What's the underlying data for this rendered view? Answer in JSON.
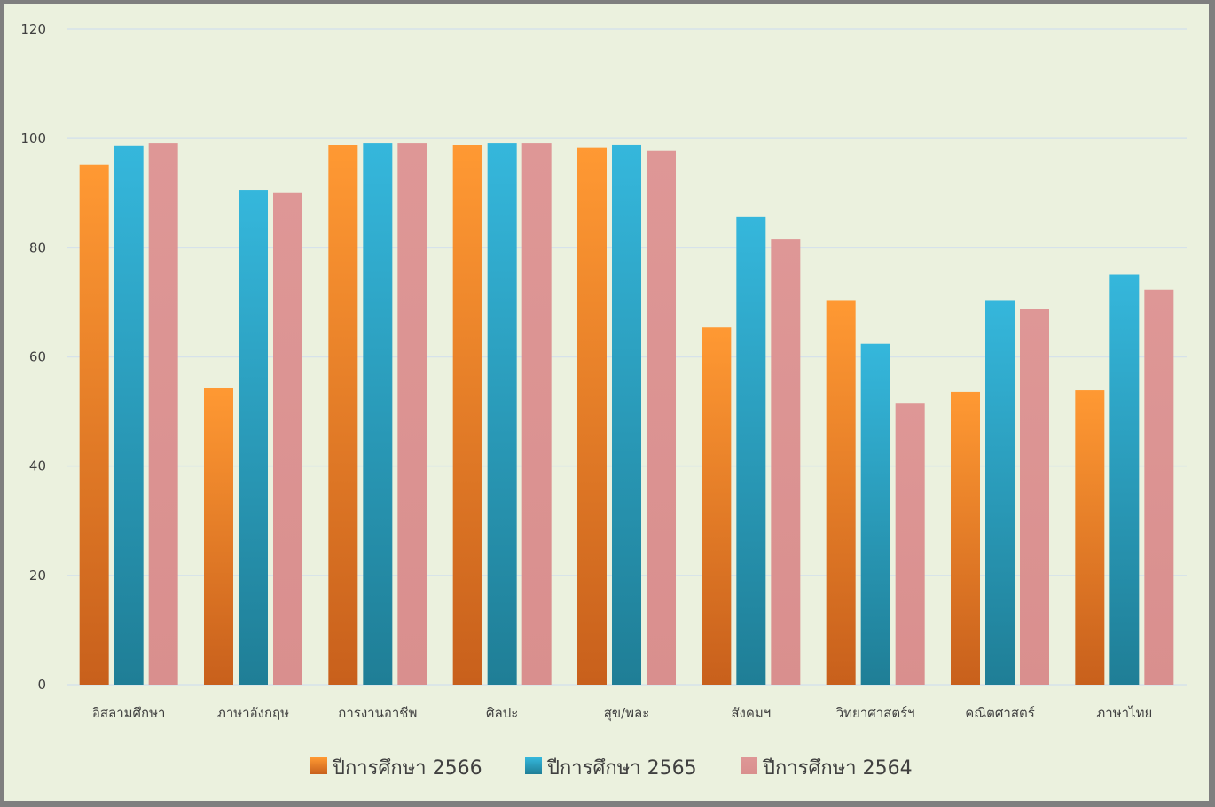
{
  "chart_data": {
    "type": "bar",
    "categories": [
      "อิสลามศึกษา",
      "ภาษาอังกฤษ",
      "การงานอาชีพ",
      "ศิลปะ",
      "สุข/พละ",
      "สังคมฯ",
      "วิทยาศาสตร์ฯ",
      "คณิตศาสตร์",
      "ภาษาไทย"
    ],
    "series": [
      {
        "name": "ปีการศึกษา 2566",
        "values": [
          95.2,
          54.4,
          98.8,
          98.8,
          98.3,
          65.4,
          70.4,
          53.6,
          53.9
        ]
      },
      {
        "name": "ปีการศึกษา 2565",
        "values": [
          98.6,
          90.6,
          99.2,
          99.2,
          98.9,
          85.6,
          62.4,
          70.4,
          75.1
        ]
      },
      {
        "name": "ปีการศึกษา 2564",
        "values": [
          99.2,
          90.0,
          99.2,
          99.2,
          97.8,
          81.5,
          51.6,
          68.8,
          72.3
        ]
      }
    ],
    "ylim": [
      0,
      120
    ],
    "yticks": [
      0,
      20,
      40,
      60,
      80,
      100,
      120
    ],
    "grid": true,
    "legend_position": "bottom",
    "colors": {
      "series": [
        {
          "top": "#ff9933",
          "bottom": "#c8601c"
        },
        {
          "top": "#35b7dc",
          "bottom": "#1f7e96"
        },
        {
          "top": "#de9796",
          "bottom": "#d98f8e"
        }
      ],
      "grid": "#d6e2ea",
      "background": "#ebf1de",
      "border": "#7f7f7f"
    },
    "title": "",
    "xlabel": "",
    "ylabel": ""
  }
}
